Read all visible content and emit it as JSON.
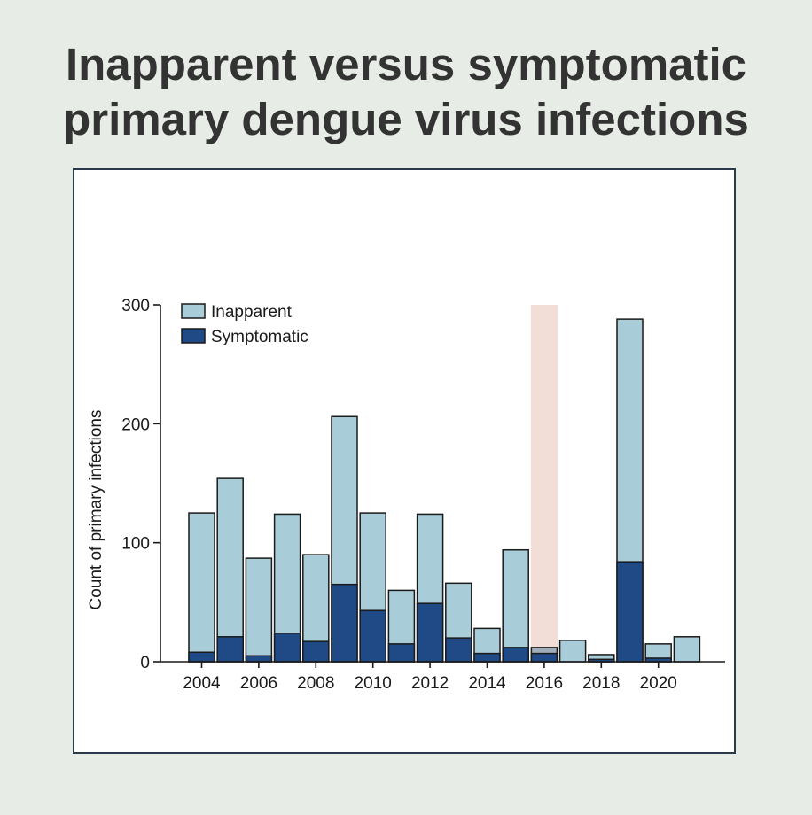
{
  "page": {
    "title_line1": "Inapparent versus symptomatic",
    "title_line2": "primary dengue virus infections"
  },
  "colors": {
    "inapparent": "#a9cdd8",
    "symptomatic": "#1f4a85",
    "highlight": "#f2ddd7",
    "unknown": "#9fadb8",
    "stroke": "#1a1a1a"
  },
  "chart_data": {
    "type": "bar",
    "stacked": true,
    "title": "Inapparent versus symptomatic primary dengue virus infections",
    "xlabel": "",
    "ylabel": "Count of primary infections",
    "ylim": [
      0,
      300
    ],
    "yticks": [
      0,
      100,
      200,
      300
    ],
    "xticks": [
      2004,
      2006,
      2008,
      2010,
      2012,
      2014,
      2016,
      2018,
      2020
    ],
    "categories": [
      2004,
      2005,
      2006,
      2007,
      2008,
      2009,
      2010,
      2011,
      2012,
      2013,
      2014,
      2015,
      2016,
      2017,
      2018,
      2019,
      2020,
      2021
    ],
    "series": [
      {
        "name": "Symptomatic",
        "values": [
          8,
          21,
          5,
          24,
          17,
          65,
          43,
          15,
          49,
          20,
          7,
          12,
          7,
          0,
          2,
          84,
          3,
          0
        ]
      },
      {
        "name": "Inapparent",
        "values": [
          117,
          133,
          82,
          100,
          73,
          141,
          82,
          45,
          75,
          46,
          21,
          82,
          5,
          18,
          4,
          204,
          12,
          21
        ]
      }
    ],
    "highlight_band": {
      "year": 2016,
      "note": ""
    },
    "legend": {
      "placement": "top-left",
      "entries": [
        "Inapparent",
        "Symptomatic"
      ]
    },
    "grid": false
  }
}
